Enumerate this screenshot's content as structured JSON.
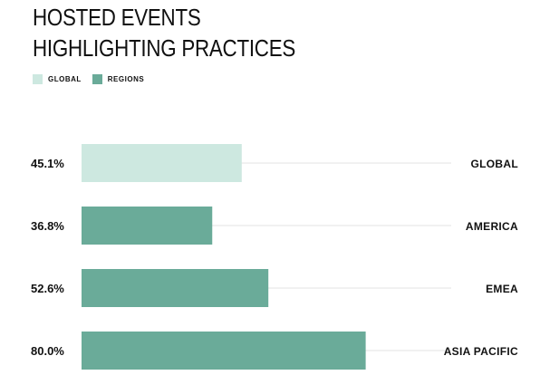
{
  "chart_data": {
    "type": "bar",
    "orientation": "horizontal",
    "title": [
      "HOSTED EVENTS",
      "HIGHLIGHTING PRACTICES"
    ],
    "legend": [
      {
        "name": "GLOBAL",
        "color": "#cde8e0"
      },
      {
        "name": "REGIONS",
        "color": "#6aab99"
      }
    ],
    "legend_position": "top-left",
    "categories": [
      "GLOBAL",
      "AMERICA",
      "EMEA",
      "ASIA PACIFIC"
    ],
    "values": [
      45.1,
      36.8,
      52.6,
      80.0
    ],
    "value_labels": [
      "45.1%",
      "36.8%",
      "52.6%",
      "80.0%"
    ],
    "series_of_category": [
      "GLOBAL",
      "REGIONS",
      "REGIONS",
      "REGIONS"
    ],
    "xlim": [
      0,
      100
    ],
    "grid": false
  }
}
